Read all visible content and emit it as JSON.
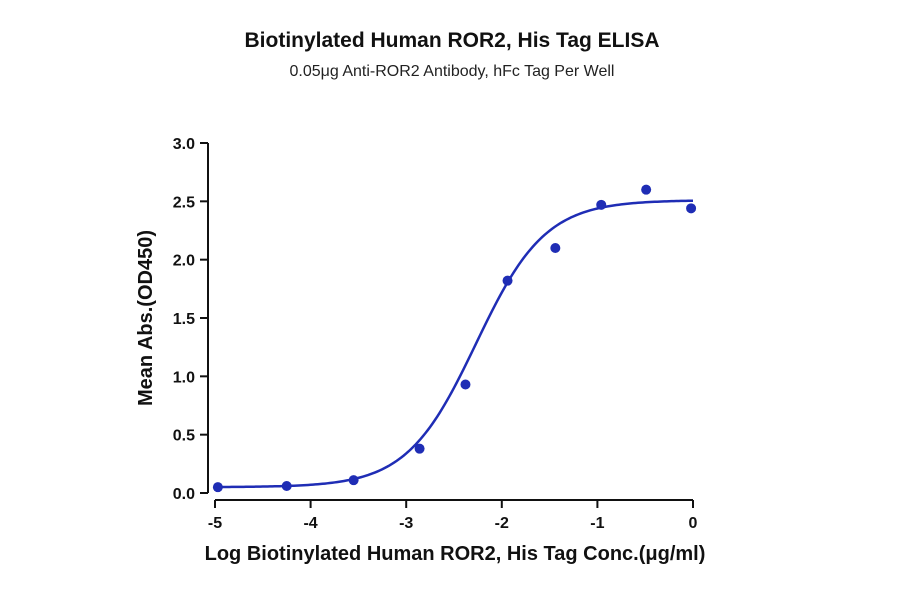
{
  "chart_data": {
    "type": "scatter",
    "title": "Biotinylated Human ROR2, His Tag ELISA",
    "subtitle": "0.05μg Anti-ROR2 Antibody, hFc Tag Per Well",
    "xlabel": "Log Biotinylated Human ROR2, His Tag Conc.(μg/ml)",
    "ylabel": "Mean Abs.(OD450)",
    "xlim": [
      -5,
      0
    ],
    "ylim": [
      0,
      3.0
    ],
    "x_ticks": [
      -5,
      -4,
      -3,
      -2,
      -1,
      0
    ],
    "x_tick_labels": [
      "-5",
      "-4",
      "-3",
      "-2",
      "-1",
      "0"
    ],
    "y_ticks": [
      0,
      0.5,
      1.0,
      1.5,
      2.0,
      2.5,
      3.0
    ],
    "y_tick_labels": [
      "0.0",
      "0.5",
      "1.0",
      "1.5",
      "2.0",
      "2.5",
      "3.0"
    ],
    "grid": false,
    "color": "#1f2db5",
    "points": {
      "x": [
        -4.97,
        -4.25,
        -3.55,
        -2.86,
        -2.38,
        -1.94,
        -1.44,
        -0.96,
        -0.49,
        -0.02
      ],
      "y": [
        0.05,
        0.06,
        0.11,
        0.38,
        0.93,
        1.82,
        2.1,
        2.47,
        2.6,
        2.44
      ]
    },
    "fit_curve": {
      "model": "4PL",
      "bottom": 0.05,
      "top": 2.51,
      "log_ec50": -2.27,
      "hill_slope": 1.2
    }
  }
}
